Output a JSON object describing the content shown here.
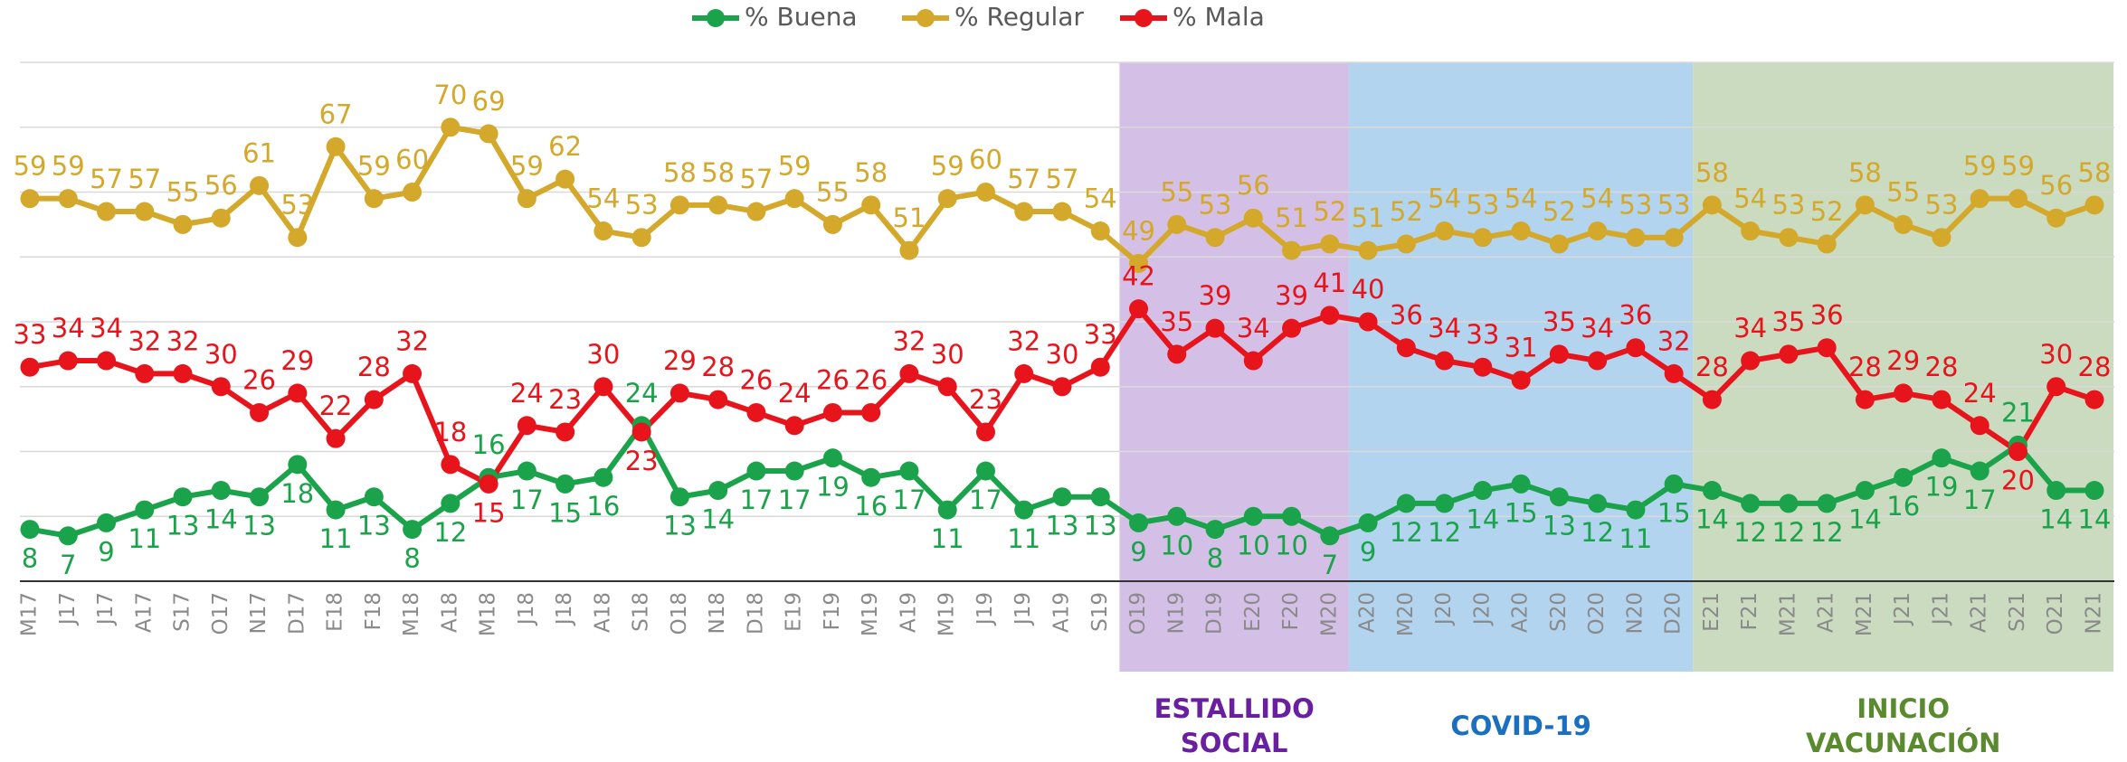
{
  "chart_data": {
    "type": "line",
    "categories": [
      "M17",
      "J17",
      "J17",
      "A17",
      "S17",
      "O17",
      "N17",
      "D17",
      "E18",
      "F18",
      "M18",
      "A18",
      "M18",
      "J18",
      "J18",
      "A18",
      "S18",
      "O18",
      "N18",
      "D18",
      "E19",
      "F19",
      "M19",
      "A19",
      "M19",
      "J19",
      "J19",
      "A19",
      "S19",
      "O19",
      "N19",
      "D19",
      "E20",
      "F20",
      "M20",
      "A20",
      "M20",
      "J20",
      "J20",
      "A20",
      "S20",
      "O20",
      "N20",
      "D20",
      "E21",
      "F21",
      "M21",
      "A21",
      "M21",
      "J21",
      "J21",
      "A21",
      "S21",
      "O21",
      "N21"
    ],
    "series": [
      {
        "name": "% Buena",
        "color": "#1aa34a",
        "values": [
          8,
          7,
          9,
          11,
          13,
          14,
          13,
          18,
          11,
          13,
          8,
          12,
          16,
          17,
          15,
          16,
          24,
          13,
          14,
          17,
          17,
          19,
          16,
          17,
          11,
          17,
          11,
          13,
          13,
          9,
          10,
          8,
          10,
          10,
          7,
          9,
          12,
          12,
          14,
          15,
          13,
          12,
          11,
          15,
          14,
          12,
          12,
          12,
          14,
          16,
          19,
          17,
          21,
          14,
          14
        ]
      },
      {
        "name": "% Regular",
        "color": "#d4a82a",
        "values": [
          59,
          59,
          57,
          57,
          55,
          56,
          61,
          53,
          67,
          59,
          60,
          70,
          69,
          59,
          62,
          54,
          53,
          58,
          58,
          57,
          59,
          55,
          58,
          51,
          59,
          60,
          57,
          57,
          54,
          49,
          55,
          53,
          56,
          51,
          52,
          51,
          52,
          54,
          53,
          54,
          52,
          54,
          53,
          53,
          58,
          54,
          53,
          52,
          58,
          55,
          53,
          59,
          59,
          56,
          58
        ]
      },
      {
        "name": "% Mala",
        "color": "#e8141c",
        "values": [
          33,
          34,
          34,
          32,
          32,
          30,
          26,
          29,
          22,
          28,
          32,
          18,
          15,
          24,
          23,
          30,
          23,
          29,
          28,
          26,
          24,
          26,
          26,
          32,
          30,
          23,
          32,
          30,
          33,
          42,
          35,
          39,
          34,
          39,
          41,
          40,
          36,
          34,
          33,
          31,
          35,
          34,
          36,
          32,
          28,
          34,
          35,
          36,
          28,
          29,
          28,
          24,
          20,
          30,
          28
        ]
      }
    ],
    "ylim": [
      0,
      80
    ],
    "yticks": [
      0,
      10,
      20,
      30,
      40,
      50,
      60,
      70,
      80
    ],
    "grid": true,
    "legend": "top",
    "periods": [
      {
        "label": [
          "ESTALLIDO",
          "SOCIAL"
        ],
        "from": 29,
        "to": 34,
        "color": "#d4c0e6",
        "text_color": "#6a1fa0"
      },
      {
        "label": [
          "COVID-19"
        ],
        "from": 35,
        "to": 43,
        "color": "#b3d4ee",
        "text_color": "#1a6fc0"
      },
      {
        "label": [
          "INICIO",
          "VACUNACIÓN"
        ],
        "from": 44,
        "to": 54,
        "color": "#cbdbc0",
        "text_color": "#5a8a2e"
      }
    ]
  }
}
